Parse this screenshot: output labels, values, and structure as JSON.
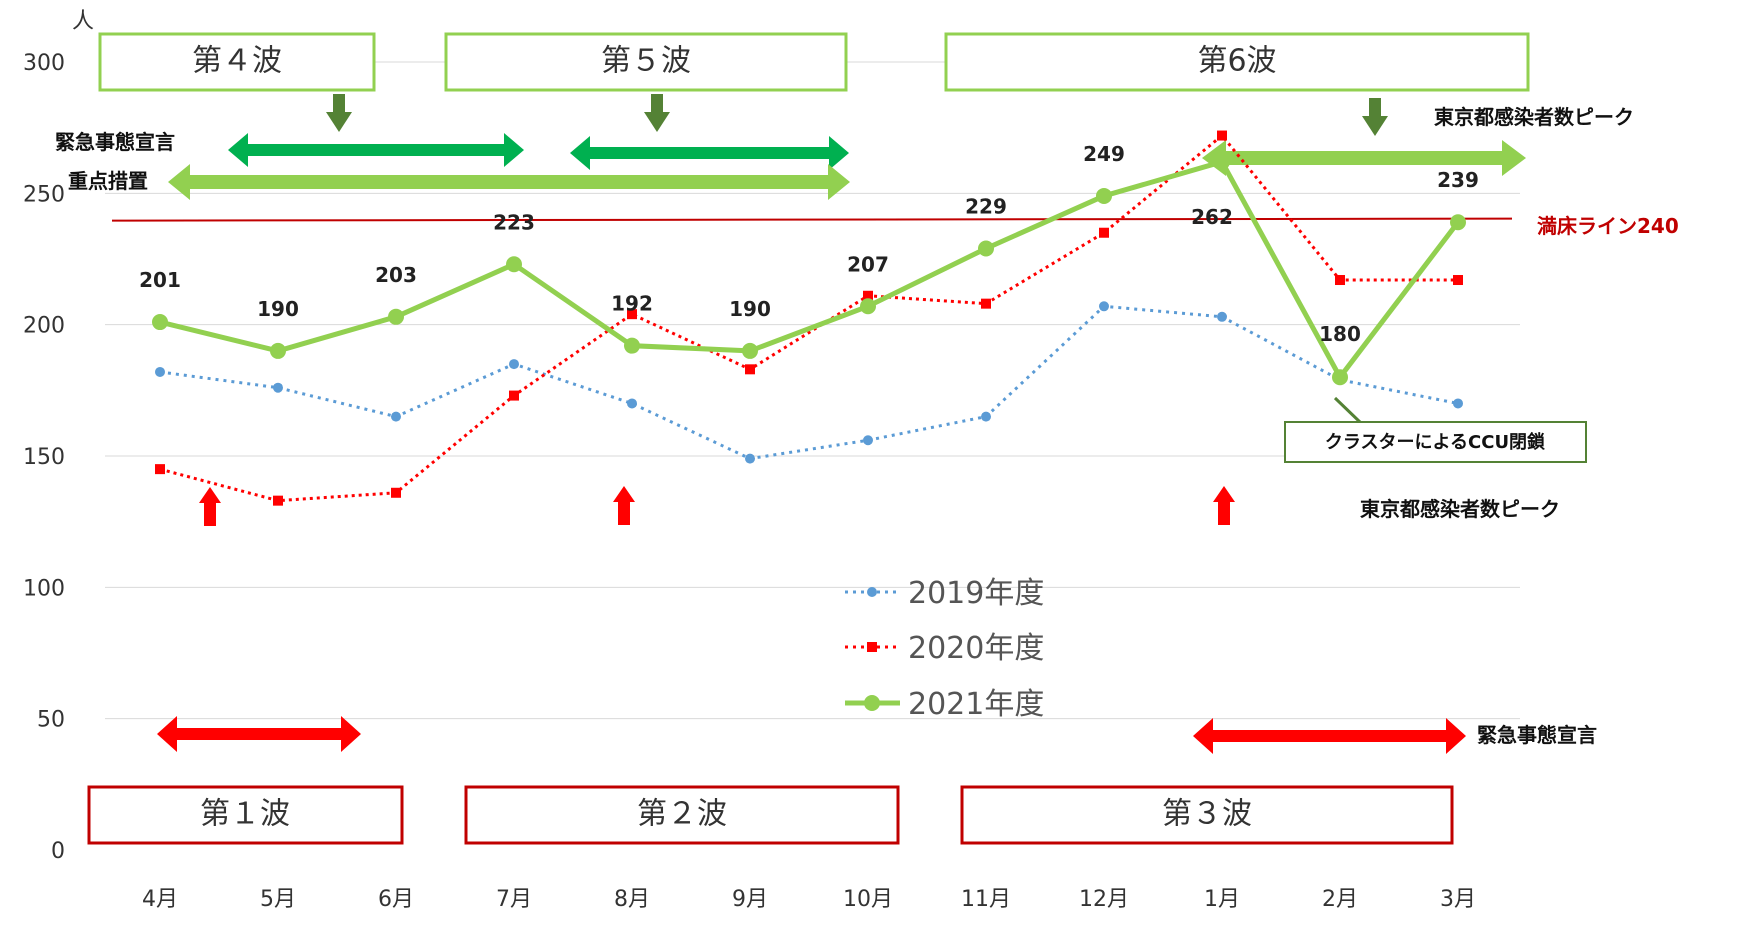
{
  "chart_data": {
    "type": "line",
    "y_unit": "人",
    "ylim": [
      0,
      300
    ],
    "yticks": [
      "0",
      "50",
      "100",
      "150",
      "200",
      "250",
      "300"
    ],
    "categories": [
      "4月",
      "5月",
      "6月",
      "7月",
      "8月",
      "9月",
      "10月",
      "11月",
      "12月",
      "1月",
      "2月",
      "3月"
    ],
    "grid": "horizontal",
    "legend_position": "center",
    "series": [
      {
        "name": "2019年度",
        "style": "dotted",
        "color": "#5b9bd5",
        "values": [
          182,
          176,
          165,
          185,
          170,
          149,
          156,
          165,
          207,
          203,
          179,
          170
        ]
      },
      {
        "name": "2020年度",
        "style": "dotted",
        "color": "#ff0000",
        "values": [
          145,
          133,
          136,
          173,
          204,
          183,
          211,
          208,
          235,
          272,
          217,
          217
        ]
      },
      {
        "name": "2021年度",
        "style": "solid",
        "color": "#92d050",
        "values": [
          201,
          190,
          203,
          223,
          192,
          190,
          207,
          229,
          249,
          262,
          180,
          239
        ],
        "labels": [
          "201",
          "190",
          "203",
          "223",
          "192",
          "190",
          "207",
          "229",
          "249",
          "262",
          "180",
          "239"
        ]
      }
    ],
    "reference_line": {
      "label": "満床ライン240",
      "value": 240,
      "color": "#c00000"
    },
    "annotations": {
      "waves_2021": [
        "第４波",
        "第５波",
        "第6波"
      ],
      "waves_2020": [
        "第１波",
        "第２波",
        "第３波"
      ],
      "emergency_2021": "緊急事態宣言",
      "priority_2021": "重点措置",
      "tokyo_peak_2021": "東京都感染者数ピーク",
      "tokyo_peak_2020": "東京都感染者数ピーク",
      "emergency_2020": "緊急事態宣言",
      "cluster": "クラスターによるCCU閉鎖"
    }
  },
  "colors": {
    "green_dark": "#00b050",
    "green_light": "#92d050",
    "green_arrow": "#548235",
    "red": "#ff0000",
    "dark_red": "#c00000"
  }
}
